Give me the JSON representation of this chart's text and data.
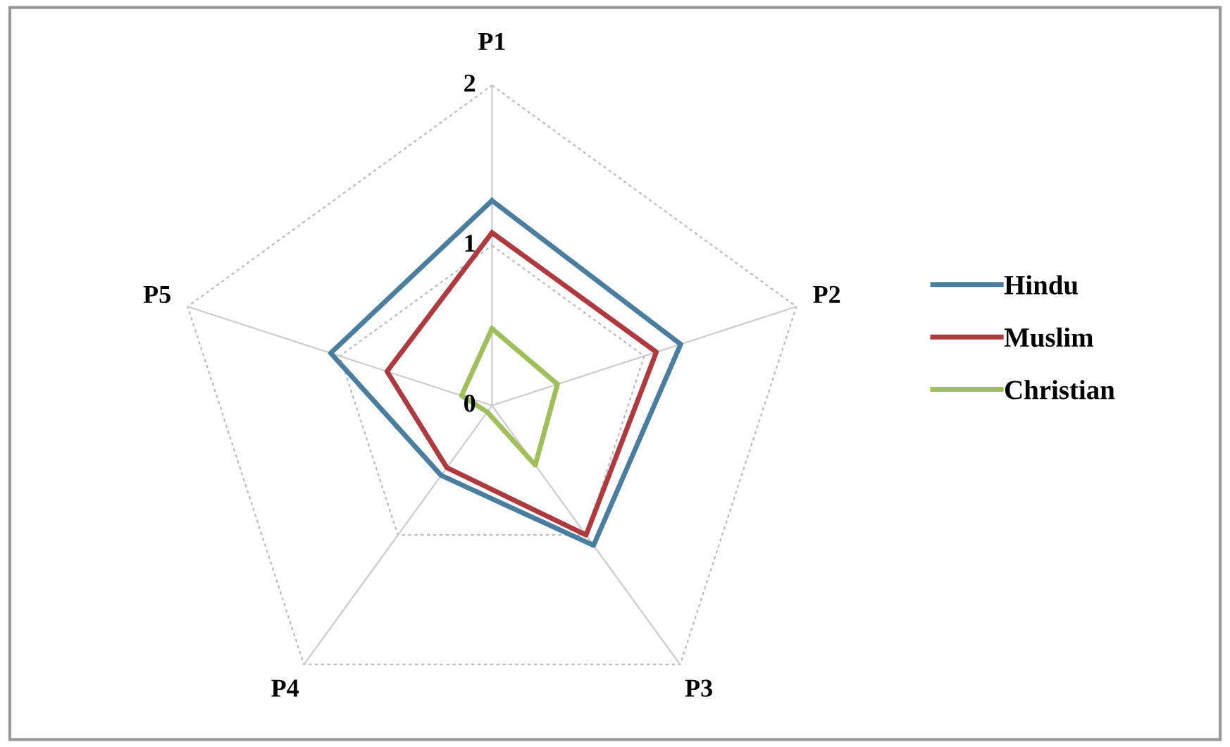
{
  "chart_data": {
    "type": "radar",
    "categories": [
      "P1",
      "P2",
      "P3",
      "P4",
      "P5"
    ],
    "series": [
      {
        "name": "Hindu",
        "color": "#4a7ea0",
        "values": [
          1.28,
          1.24,
          1.08,
          0.54,
          1.06
        ]
      },
      {
        "name": "Muslim",
        "color": "#b0393e",
        "values": [
          1.08,
          1.08,
          1.0,
          0.48,
          0.69
        ]
      },
      {
        "name": "Christian",
        "color": "#9fbf5a",
        "values": [
          0.48,
          0.43,
          0.46,
          0.05,
          0.2
        ]
      }
    ],
    "ylim": [
      0,
      2
    ],
    "yticks": [
      0,
      1,
      2
    ],
    "grid": true,
    "legend": "right"
  }
}
